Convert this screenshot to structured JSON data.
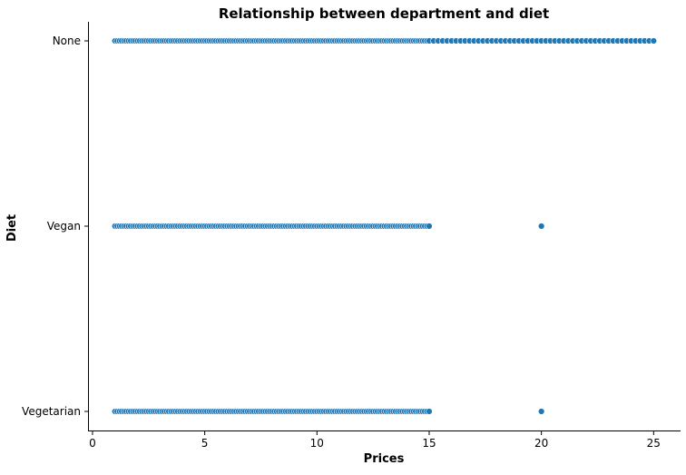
{
  "chart_data": {
    "type": "scatter",
    "title": "Relationship between department and diet",
    "xlabel": "Prices",
    "ylabel": "Diet",
    "xlim": [
      -0.2,
      26.2
    ],
    "xticks": [
      0,
      5,
      10,
      15,
      20,
      25
    ],
    "categories": [
      "None",
      "Vegan",
      "Vegetarian"
    ],
    "grid": false,
    "legend": "none",
    "marker_color": "#1f77b4",
    "series": [
      {
        "category": "None",
        "x": [
          1.0,
          1.1,
          1.2,
          1.3,
          1.4,
          1.5,
          1.6,
          1.7,
          1.8,
          1.9,
          2.0,
          2.1,
          2.2,
          2.3,
          2.4,
          2.5,
          2.6,
          2.7,
          2.8,
          2.9,
          3.0,
          3.1,
          3.2,
          3.3,
          3.4,
          3.5,
          3.6,
          3.7,
          3.8,
          3.9,
          4.0,
          4.1,
          4.2,
          4.3,
          4.4,
          4.5,
          4.6,
          4.7,
          4.8,
          4.9,
          5.0,
          5.1,
          5.2,
          5.3,
          5.4,
          5.5,
          5.6,
          5.7,
          5.8,
          5.9,
          6.0,
          6.1,
          6.2,
          6.3,
          6.4,
          6.5,
          6.6,
          6.7,
          6.8,
          6.9,
          7.0,
          7.1,
          7.2,
          7.3,
          7.4,
          7.5,
          7.6,
          7.7,
          7.8,
          7.9,
          8.0,
          8.1,
          8.2,
          8.3,
          8.4,
          8.5,
          8.6,
          8.7,
          8.8,
          8.9,
          9.0,
          9.1,
          9.2,
          9.3,
          9.4,
          9.5,
          9.6,
          9.7,
          9.8,
          9.9,
          10.0,
          10.1,
          10.2,
          10.3,
          10.4,
          10.5,
          10.6,
          10.7,
          10.8,
          10.9,
          11.0,
          11.1,
          11.2,
          11.3,
          11.4,
          11.5,
          11.6,
          11.7,
          11.8,
          11.9,
          12.0,
          12.1,
          12.2,
          12.3,
          12.4,
          12.5,
          12.6,
          12.7,
          12.8,
          12.9,
          13.0,
          13.1,
          13.2,
          13.3,
          13.4,
          13.5,
          13.6,
          13.7,
          13.8,
          13.9,
          14.0,
          14.1,
          14.2,
          14.3,
          14.4,
          14.5,
          14.6,
          14.7,
          14.8,
          14.9,
          15.0,
          15.2,
          15.4,
          15.6,
          15.8,
          16.0,
          16.2,
          16.4,
          16.6,
          16.8,
          17.0,
          17.2,
          17.4,
          17.6,
          17.8,
          18.0,
          18.2,
          18.4,
          18.6,
          18.8,
          19.0,
          19.2,
          19.4,
          19.6,
          19.8,
          20.0,
          20.2,
          20.4,
          20.6,
          20.8,
          21.0,
          21.2,
          21.4,
          21.6,
          21.8,
          22.0,
          22.2,
          22.4,
          22.6,
          22.8,
          23.0,
          23.2,
          23.4,
          23.6,
          23.8,
          24.0,
          24.2,
          24.4,
          24.6,
          24.8,
          25.0
        ]
      },
      {
        "category": "Vegan",
        "x": [
          1.0,
          1.1,
          1.2,
          1.3,
          1.4,
          1.5,
          1.6,
          1.7,
          1.8,
          1.9,
          2.0,
          2.1,
          2.2,
          2.3,
          2.4,
          2.5,
          2.6,
          2.7,
          2.8,
          2.9,
          3.0,
          3.1,
          3.2,
          3.3,
          3.4,
          3.5,
          3.6,
          3.7,
          3.8,
          3.9,
          4.0,
          4.1,
          4.2,
          4.3,
          4.4,
          4.5,
          4.6,
          4.7,
          4.8,
          4.9,
          5.0,
          5.1,
          5.2,
          5.3,
          5.4,
          5.5,
          5.6,
          5.7,
          5.8,
          5.9,
          6.0,
          6.1,
          6.2,
          6.3,
          6.4,
          6.5,
          6.6,
          6.7,
          6.8,
          6.9,
          7.0,
          7.1,
          7.2,
          7.3,
          7.4,
          7.5,
          7.6,
          7.7,
          7.8,
          7.9,
          8.0,
          8.1,
          8.2,
          8.3,
          8.4,
          8.5,
          8.6,
          8.7,
          8.8,
          8.9,
          9.0,
          9.1,
          9.2,
          9.3,
          9.4,
          9.5,
          9.6,
          9.7,
          9.8,
          9.9,
          10.0,
          10.1,
          10.2,
          10.3,
          10.4,
          10.5,
          10.6,
          10.7,
          10.8,
          10.9,
          11.0,
          11.1,
          11.2,
          11.3,
          11.4,
          11.5,
          11.6,
          11.7,
          11.8,
          11.9,
          12.0,
          12.1,
          12.2,
          12.3,
          12.4,
          12.5,
          12.6,
          12.7,
          12.8,
          12.9,
          13.0,
          13.1,
          13.2,
          13.3,
          13.4,
          13.5,
          13.6,
          13.7,
          13.8,
          13.9,
          14.0,
          14.1,
          14.2,
          14.3,
          14.4,
          14.5,
          14.6,
          14.7,
          14.8,
          14.9,
          15.0,
          20.0
        ]
      },
      {
        "category": "Vegetarian",
        "x": [
          1.0,
          1.1,
          1.2,
          1.3,
          1.4,
          1.5,
          1.6,
          1.7,
          1.8,
          1.9,
          2.0,
          2.1,
          2.2,
          2.3,
          2.4,
          2.5,
          2.6,
          2.7,
          2.8,
          2.9,
          3.0,
          3.1,
          3.2,
          3.3,
          3.4,
          3.5,
          3.6,
          3.7,
          3.8,
          3.9,
          4.0,
          4.1,
          4.2,
          4.3,
          4.4,
          4.5,
          4.6,
          4.7,
          4.8,
          4.9,
          5.0,
          5.1,
          5.2,
          5.3,
          5.4,
          5.5,
          5.6,
          5.7,
          5.8,
          5.9,
          6.0,
          6.1,
          6.2,
          6.3,
          6.4,
          6.5,
          6.6,
          6.7,
          6.8,
          6.9,
          7.0,
          7.1,
          7.2,
          7.3,
          7.4,
          7.5,
          7.6,
          7.7,
          7.8,
          7.9,
          8.0,
          8.1,
          8.2,
          8.3,
          8.4,
          8.5,
          8.6,
          8.7,
          8.8,
          8.9,
          9.0,
          9.1,
          9.2,
          9.3,
          9.4,
          9.5,
          9.6,
          9.7,
          9.8,
          9.9,
          10.0,
          10.1,
          10.2,
          10.3,
          10.4,
          10.5,
          10.6,
          10.7,
          10.8,
          10.9,
          11.0,
          11.1,
          11.2,
          11.3,
          11.4,
          11.5,
          11.6,
          11.7,
          11.8,
          11.9,
          12.0,
          12.1,
          12.2,
          12.3,
          12.4,
          12.5,
          12.6,
          12.7,
          12.8,
          12.9,
          13.0,
          13.1,
          13.2,
          13.3,
          13.4,
          13.5,
          13.6,
          13.7,
          13.8,
          13.9,
          14.0,
          14.1,
          14.2,
          14.3,
          14.4,
          14.5,
          14.6,
          14.7,
          14.8,
          14.9,
          15.0,
          20.0
        ]
      }
    ]
  }
}
